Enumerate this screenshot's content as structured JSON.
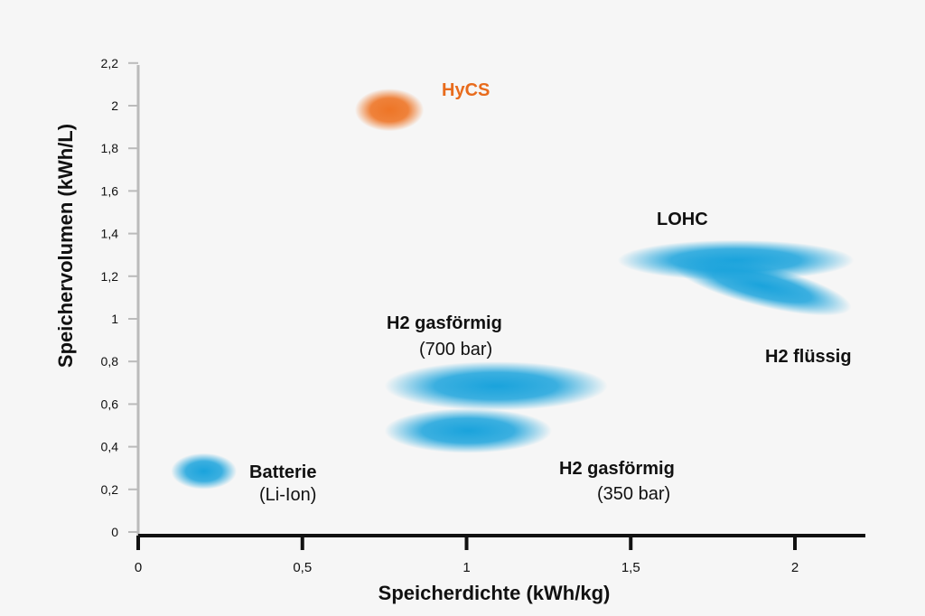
{
  "chart_data": {
    "type": "scatter",
    "title": "",
    "xlabel": "Speicherdichte (kWh/kg)",
    "ylabel": "Speichervolumen (kWh/L)",
    "xlim": [
      0,
      2.2
    ],
    "ylim": [
      0,
      2.2
    ],
    "x_ticks": [
      0,
      0.5,
      1,
      1.5,
      2
    ],
    "x_tick_labels": [
      "0",
      "0,5",
      "1",
      "1,5",
      "2"
    ],
    "y_ticks": [
      0,
      0.2,
      0.4,
      0.6,
      0.8,
      1,
      1.2,
      1.4,
      1.6,
      1.8,
      2,
      2.2
    ],
    "y_tick_labels": [
      "0",
      "0,2",
      "0,4",
      "0,6",
      "0,8",
      "1",
      "1,2",
      "1,4",
      "1,6",
      "1,8",
      "2",
      "2,2"
    ],
    "grid": false,
    "legend": "none",
    "colors": {
      "blue": "#1aa3dc",
      "orange": "#ee7526",
      "label": "#111111",
      "highlight_label": "#e86b1c",
      "axis": "#111111",
      "minor_axis": "#bbbbbb"
    },
    "regions": [
      {
        "name": "Batterie",
        "sublabel": "(Li-Ion)",
        "color": "blue",
        "x_range": [
          0.1,
          0.3
        ],
        "y_range": [
          0.2,
          0.37
        ]
      },
      {
        "name": "HyCS",
        "sublabel": "",
        "color": "orange",
        "x_range": [
          0.66,
          0.87
        ],
        "y_range": [
          1.88,
          2.08
        ]
      },
      {
        "name": "H2 gasförmig",
        "sublabel": "(700 bar)",
        "color": "blue",
        "x_range": [
          0.75,
          1.43
        ],
        "y_range": [
          0.57,
          0.8
        ]
      },
      {
        "name": "H2 gasförmig",
        "sublabel": "(350 bar)",
        "color": "blue",
        "x_range": [
          0.75,
          1.26
        ],
        "y_range": [
          0.37,
          0.58
        ]
      },
      {
        "name": "LOHC",
        "sublabel": "",
        "color": "blue",
        "x_range": [
          1.46,
          2.18
        ],
        "y_range": [
          1.18,
          1.37
        ]
      },
      {
        "name": "H2 flüssig",
        "sublabel": "",
        "color": "blue",
        "x_range": [
          1.62,
          2.18
        ],
        "y_range": [
          0.98,
          1.33
        ]
      }
    ]
  }
}
